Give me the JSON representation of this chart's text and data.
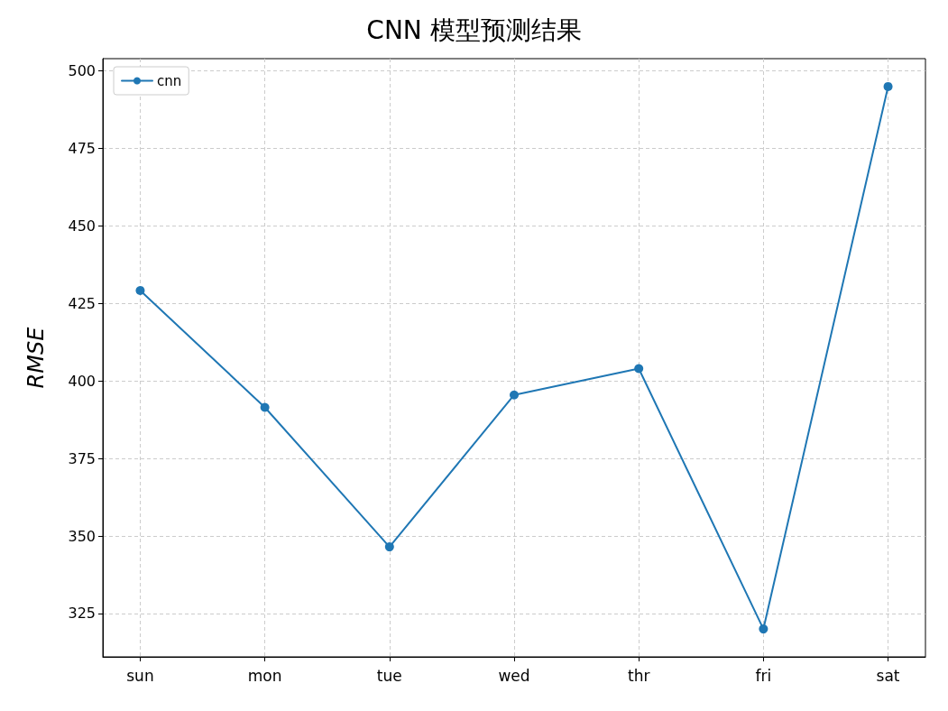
{
  "chart_data": {
    "type": "line",
    "title": "CNN 模型预测结果",
    "ylabel": "RMSE",
    "categories": [
      "sun",
      "mon",
      "tue",
      "wed",
      "thr",
      "fri",
      "sat"
    ],
    "series": [
      {
        "name": "cnn",
        "color": "#1f77b4",
        "values": [
          429.2,
          391.5,
          346.5,
          395.5,
          404,
          320,
          495
        ]
      }
    ],
    "ylim": [
      311,
      504
    ],
    "yticks": [
      325,
      350,
      375,
      400,
      425,
      450,
      475,
      500
    ],
    "grid": true,
    "legend": "top left",
    "marker": "circle",
    "line_style": "solid"
  }
}
